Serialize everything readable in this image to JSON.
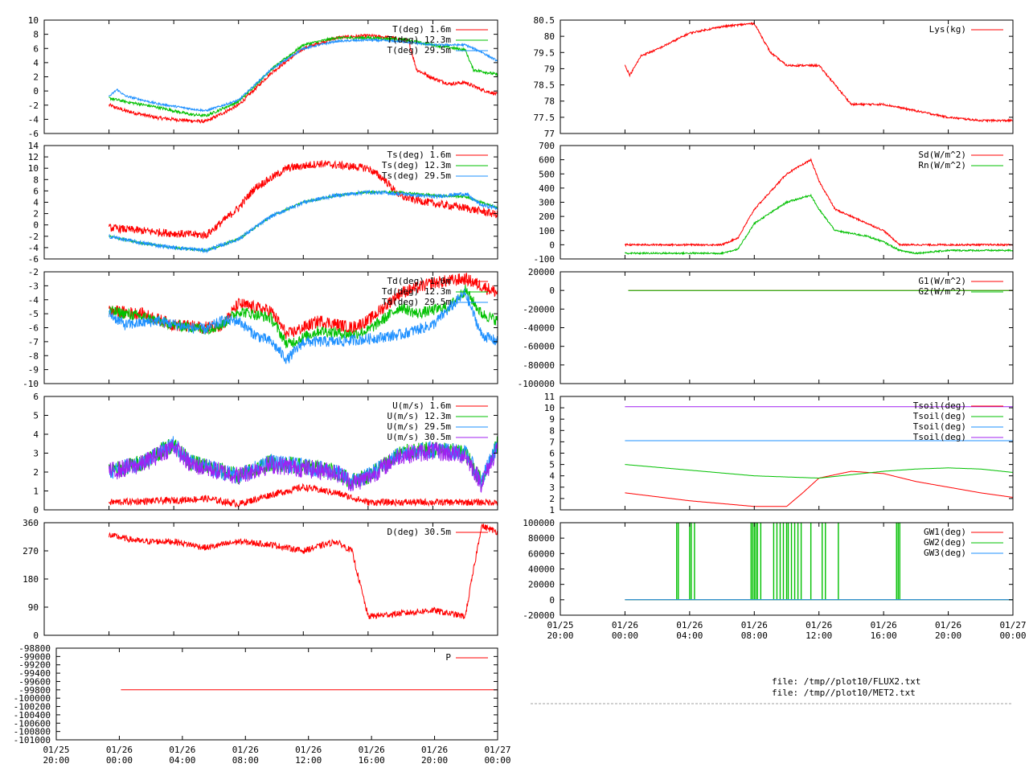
{
  "x_axis": {
    "ticks": [
      {
        "line1": "01/25",
        "line2": "20:00"
      },
      {
        "line1": "01/26",
        "line2": "00:00"
      },
      {
        "line1": "01/26",
        "line2": "04:00"
      },
      {
        "line1": "01/26",
        "line2": "08:00"
      },
      {
        "line1": "01/26",
        "line2": "12:00"
      },
      {
        "line1": "01/26",
        "line2": "16:00"
      },
      {
        "line1": "01/26",
        "line2": "20:00"
      },
      {
        "line1": "01/27",
        "line2": "00:00"
      }
    ],
    "range_hours": [
      0,
      28
    ]
  },
  "files": [
    "file: /tmp//plot10/FLUX2.txt",
    "file: /tmp//plot10/MET2.txt"
  ],
  "chart_data": [
    {
      "id": "T",
      "type": "line",
      "ylim": [
        -6,
        10
      ],
      "yticks": [
        "-6",
        "-4",
        "-2",
        "0",
        "2",
        "4",
        "6",
        "8",
        "10"
      ],
      "series": [
        {
          "name": "T(deg)  1.6m",
          "color": "#ff0000",
          "noise": 0.25,
          "x": [
            4,
            5,
            7,
            9,
            10,
            12,
            14,
            16,
            18,
            20,
            21.5,
            22.5,
            23,
            24,
            25,
            26,
            27,
            28
          ],
          "y": [
            -2,
            -2.8,
            -3.8,
            -4.2,
            -4.3,
            -2,
            2.5,
            6,
            7.5,
            7.8,
            7.5,
            7,
            3,
            1.8,
            1,
            1.2,
            0.2,
            -0.5
          ]
        },
        {
          "name": "T(deg) 12.3m",
          "color": "#00c000",
          "noise": 0.2,
          "x": [
            4,
            5,
            7,
            9,
            10,
            12,
            14,
            16,
            18,
            20,
            22,
            24,
            26,
            26.5,
            28
          ],
          "y": [
            -1,
            -1.5,
            -2.3,
            -3.3,
            -3.5,
            -1.5,
            3,
            6.5,
            7.5,
            7.5,
            7.3,
            6.5,
            5.8,
            3,
            2.3
          ]
        },
        {
          "name": "T(deg) 29.5m",
          "color": "#1e90ff",
          "noise": 0.15,
          "x": [
            4,
            4.5,
            5,
            7,
            9,
            10,
            12,
            14,
            16,
            18,
            20,
            22,
            24,
            26,
            27,
            28
          ],
          "y": [
            -0.8,
            0.2,
            -0.7,
            -1.8,
            -2.5,
            -2.8,
            -1.3,
            3,
            6,
            7,
            7.2,
            7,
            6.5,
            6.5,
            5.5,
            4.2
          ]
        }
      ]
    },
    {
      "id": "Ts",
      "type": "line",
      "ylim": [
        -6,
        14
      ],
      "yticks": [
        "-6",
        "-4",
        "-2",
        "0",
        "2",
        "4",
        "6",
        "8",
        "10",
        "12",
        "14"
      ],
      "series": [
        {
          "name": "Ts(deg)  1.6m",
          "color": "#ff0000",
          "noise": 0.7,
          "x": [
            4,
            6,
            8,
            10,
            12,
            13,
            15,
            17,
            19,
            20,
            21,
            22,
            24,
            26,
            28
          ],
          "y": [
            -0.5,
            -1,
            -1.5,
            -1.8,
            3,
            6.5,
            10,
            10.8,
            10.3,
            10,
            8,
            5,
            3.8,
            3,
            1.8
          ]
        },
        {
          "name": "Ts(deg) 12.3m",
          "color": "#00c000",
          "noise": 0.2,
          "x": [
            4,
            6,
            8,
            10,
            12,
            14,
            16,
            18,
            20,
            22,
            24,
            26,
            28
          ],
          "y": [
            -2,
            -3.2,
            -4,
            -4.5,
            -2.5,
            1.5,
            4,
            5.2,
            5.8,
            5.8,
            5.2,
            5,
            3
          ]
        },
        {
          "name": "Ts(deg) 29.5m",
          "color": "#1e90ff",
          "noise": 0.35,
          "x": [
            4,
            6,
            8,
            10,
            12,
            14,
            16,
            18,
            20,
            22,
            24,
            26,
            27,
            28
          ],
          "y": [
            -2,
            -3.2,
            -4,
            -4.5,
            -2.5,
            1.5,
            4,
            5.2,
            5.8,
            5.5,
            5,
            5.5,
            3.5,
            3
          ]
        }
      ]
    },
    {
      "id": "Td",
      "type": "line",
      "ylim": [
        -10,
        -2
      ],
      "yticks": [
        "-10",
        "-9",
        "-8",
        "-7",
        "-6",
        "-5",
        "-4",
        "-3",
        "-2"
      ],
      "series": [
        {
          "name": "Td(deg)  1.6m",
          "color": "#ff0000",
          "noise": 0.45,
          "x": [
            4,
            6,
            8,
            10,
            11,
            12,
            14,
            15,
            17,
            19,
            20,
            22,
            24,
            26,
            27,
            28
          ],
          "y": [
            -4.8,
            -5,
            -5.8,
            -6,
            -5.8,
            -4.3,
            -4.8,
            -6.5,
            -5.5,
            -6,
            -5.5,
            -3.5,
            -2.8,
            -2.5,
            -3,
            -3.5
          ]
        },
        {
          "name": "Td(deg) 12.3m",
          "color": "#00c000",
          "noise": 0.4,
          "x": [
            4,
            6,
            8,
            10,
            11,
            12,
            14,
            15,
            17,
            19,
            20,
            22,
            23,
            25,
            26,
            27,
            28
          ],
          "y": [
            -4.8,
            -5.2,
            -5.8,
            -6.1,
            -5.8,
            -4.8,
            -5.3,
            -7.2,
            -6.2,
            -6.5,
            -6.2,
            -4.5,
            -5,
            -4.5,
            -3.3,
            -5,
            -5.5
          ]
        },
        {
          "name": "Td(deg) 29.5m",
          "color": "#1e90ff",
          "noise": 0.4,
          "x": [
            4,
            5,
            7,
            9,
            10,
            11,
            12,
            13,
            14,
            15,
            16,
            18,
            20,
            22,
            24,
            26,
            27,
            28
          ],
          "y": [
            -5,
            -5.8,
            -5.5,
            -6,
            -6.1,
            -5.5,
            -5.5,
            -6.5,
            -7,
            -8.3,
            -7,
            -7,
            -6.8,
            -6.5,
            -5.8,
            -3.5,
            -6.5,
            -7
          ]
        }
      ]
    },
    {
      "id": "U",
      "type": "line",
      "ylim": [
        0,
        6
      ],
      "yticks": [
        "0",
        "1",
        "2",
        "3",
        "4",
        "5",
        "6"
      ],
      "series": [
        {
          "name": "U(m/s)  1.6m",
          "color": "#ff0000",
          "noise": 0.18,
          "x": [
            4,
            8,
            10,
            12,
            14,
            16,
            18,
            20,
            22,
            24,
            26,
            28
          ],
          "y": [
            0.4,
            0.5,
            0.6,
            0.3,
            0.8,
            1.2,
            0.9,
            0.4,
            0.4,
            0.4,
            0.4,
            0.4
          ]
        },
        {
          "name": "U(m/s) 12.3m",
          "color": "#00c000",
          "noise": 0.45,
          "x": [
            4,
            6,
            8,
            9,
            10,
            12,
            14,
            16,
            18,
            19,
            20,
            22,
            24,
            26,
            27,
            28
          ],
          "y": [
            2,
            2.5,
            3.5,
            2.5,
            2.3,
            1.8,
            2.5,
            2.3,
            2,
            1.5,
            1.8,
            3,
            3.2,
            3,
            1.5,
            3.5
          ]
        },
        {
          "name": "U(m/s) 29.5m",
          "color": "#1e90ff",
          "noise": 0.45,
          "x": [
            4,
            6,
            8,
            9,
            10,
            12,
            14,
            16,
            18,
            19,
            20,
            22,
            24,
            26,
            27,
            28
          ],
          "y": [
            2,
            2.5,
            3.5,
            2.5,
            2.3,
            1.8,
            2.5,
            2.3,
            2,
            1.5,
            1.8,
            3,
            3.2,
            3,
            1.5,
            3.5
          ]
        },
        {
          "name": "U(m/s) 30.5m",
          "color": "#a020f0",
          "noise": 0.5,
          "x": [
            4,
            6,
            8,
            9,
            10,
            12,
            14,
            16,
            18,
            19,
            20,
            22,
            24,
            26,
            27,
            28
          ],
          "y": [
            2,
            2.4,
            3.4,
            2.4,
            2.2,
            1.8,
            2.4,
            2.2,
            2,
            1.4,
            1.7,
            2.9,
            3.1,
            2.9,
            1.4,
            3.3
          ]
        }
      ]
    },
    {
      "id": "D",
      "type": "line",
      "ylim": [
        0,
        360
      ],
      "yticks": [
        "0",
        "90",
        "180",
        "270",
        "360"
      ],
      "series": [
        {
          "name": "D(deg)  30.5m",
          "color": "#ff0000",
          "noise": 10,
          "x": [
            4,
            6,
            8,
            10,
            12,
            14,
            16,
            18,
            19,
            20,
            22,
            24,
            26,
            27,
            28
          ],
          "y": [
            320,
            300,
            300,
            280,
            300,
            290,
            270,
            300,
            270,
            60,
            70,
            80,
            60,
            350,
            330
          ]
        }
      ]
    },
    {
      "id": "P",
      "type": "line",
      "ylim": [
        -98800,
        -101000
      ],
      "yticks": [
        "-101000",
        "-100800",
        "-100600",
        "-100400",
        "-100200",
        "-100000",
        "-99800",
        "-99600",
        "-99400",
        "-99200",
        "-99000",
        "-98800"
      ],
      "series": [
        {
          "name": "P",
          "color": "#ff0000",
          "noise": 0,
          "x": [
            4.1,
            28
          ],
          "y": [
            -100000,
            -100000
          ]
        }
      ]
    },
    {
      "id": "Lys",
      "type": "line",
      "ylim": [
        77,
        80.5
      ],
      "yticks": [
        "77",
        "77.5",
        "78",
        "78.5",
        "79",
        "79.5",
        "80",
        "80.5"
      ],
      "series": [
        {
          "name": "Lys(kg)",
          "color": "#ff0000",
          "noise": 0.03,
          "x": [
            4,
            4.3,
            5,
            6,
            8,
            9,
            10,
            12,
            13,
            14,
            15,
            16,
            17,
            18,
            20,
            22,
            24,
            26,
            28
          ],
          "y": [
            79.1,
            78.8,
            79.4,
            79.6,
            80.1,
            80.2,
            80.3,
            80.4,
            79.5,
            79.1,
            79.1,
            79.1,
            78.5,
            77.9,
            77.9,
            77.7,
            77.5,
            77.4,
            77.4
          ]
        }
      ]
    },
    {
      "id": "Sd",
      "type": "line",
      "ylim": [
        -100,
        700
      ],
      "yticks": [
        "-100",
        "0",
        "100",
        "200",
        "300",
        "400",
        "500",
        "600",
        "700"
      ],
      "series": [
        {
          "name": "Sd(W/m^2)",
          "color": "#ff0000",
          "noise": 6,
          "x": [
            4,
            10,
            11,
            12,
            14,
            15.5,
            16,
            17,
            18,
            19,
            20,
            21,
            22,
            28
          ],
          "y": [
            0,
            0,
            50,
            250,
            500,
            600,
            450,
            250,
            200,
            150,
            100,
            0,
            0,
            0
          ]
        },
        {
          "name": "Rn(W/m^2)",
          "color": "#00c000",
          "noise": 6,
          "x": [
            4,
            10,
            11,
            12,
            14,
            15.5,
            16,
            17,
            18,
            19,
            20,
            21,
            22,
            24,
            28
          ],
          "y": [
            -60,
            -60,
            -30,
            150,
            300,
            350,
            250,
            100,
            80,
            60,
            20,
            -40,
            -60,
            -40,
            -40
          ]
        }
      ]
    },
    {
      "id": "G",
      "type": "line",
      "ylim": [
        -100000,
        20000
      ],
      "yticks": [
        "-100000",
        "-80000",
        "-60000",
        "-40000",
        "-20000",
        "0",
        "20000"
      ],
      "series": [
        {
          "name": "G1(W/m^2)",
          "color": "#ff0000",
          "noise": 0,
          "x": [
            4.2,
            28
          ],
          "y": [
            0,
            0
          ]
        },
        {
          "name": "G2(W/m^2)",
          "color": "#00c000",
          "noise": 0,
          "x": [
            4.2,
            28
          ],
          "y": [
            0,
            0
          ]
        }
      ]
    },
    {
      "id": "Tsoil",
      "type": "line",
      "ylim": [
        1,
        11
      ],
      "yticks": [
        "1",
        "2",
        "3",
        "4",
        "5",
        "6",
        "7",
        "8",
        "9",
        "10",
        "11"
      ],
      "series": [
        {
          "name": "Tsoil(deg)",
          "color": "#ff0000",
          "noise": 0,
          "x": [
            4,
            8,
            12,
            14,
            15,
            16,
            18,
            20,
            22,
            24,
            26,
            28
          ],
          "y": [
            2.5,
            1.8,
            1.3,
            1.3,
            2.5,
            3.8,
            4.4,
            4.2,
            3.5,
            3,
            2.5,
            2.1
          ]
        },
        {
          "name": "Tsoil(deg)",
          "color": "#00c000",
          "noise": 0,
          "x": [
            4,
            8,
            12,
            16,
            20,
            22,
            24,
            26,
            28
          ],
          "y": [
            5,
            4.5,
            4,
            3.8,
            4.4,
            4.6,
            4.7,
            4.6,
            4.3
          ]
        },
        {
          "name": "Tsoil(deg)",
          "color": "#1e90ff",
          "noise": 0,
          "x": [
            4,
            28
          ],
          "y": [
            7.1,
            7.1
          ]
        },
        {
          "name": "Tsoil(deg)",
          "color": "#a020f0",
          "noise": 0,
          "x": [
            4,
            28
          ],
          "y": [
            10.1,
            10.1
          ]
        }
      ]
    },
    {
      "id": "GW",
      "type": "line",
      "ylim": [
        -20000,
        100000
      ],
      "yticks": [
        "-20000",
        "0",
        "20000",
        "40000",
        "60000",
        "80000",
        "100000"
      ],
      "series": [
        {
          "name": "GW1(deg)",
          "color": "#ff0000",
          "noise": 0,
          "x": [
            4,
            28
          ],
          "y": [
            0,
            0
          ]
        },
        {
          "name": "GW2(deg)",
          "color": "#00c000",
          "noise": 0,
          "x": [
            4,
            28
          ],
          "y": [
            0,
            0
          ],
          "spikes": [
            7.2,
            7.3,
            8.0,
            8.1,
            8.3,
            11.8,
            11.9,
            12.0,
            12.1,
            12.2,
            12.4,
            13.2,
            13.4,
            13.6,
            13.8,
            14.0,
            14.1,
            14.3,
            14.5,
            14.7,
            14.9,
            15.5,
            16.2,
            16.4,
            17.2,
            20.8,
            20.9,
            21.0
          ]
        },
        {
          "name": "GW3(deg)",
          "color": "#1e90ff",
          "noise": 0,
          "x": [
            4,
            28
          ],
          "y": [
            0,
            0
          ]
        }
      ]
    }
  ]
}
